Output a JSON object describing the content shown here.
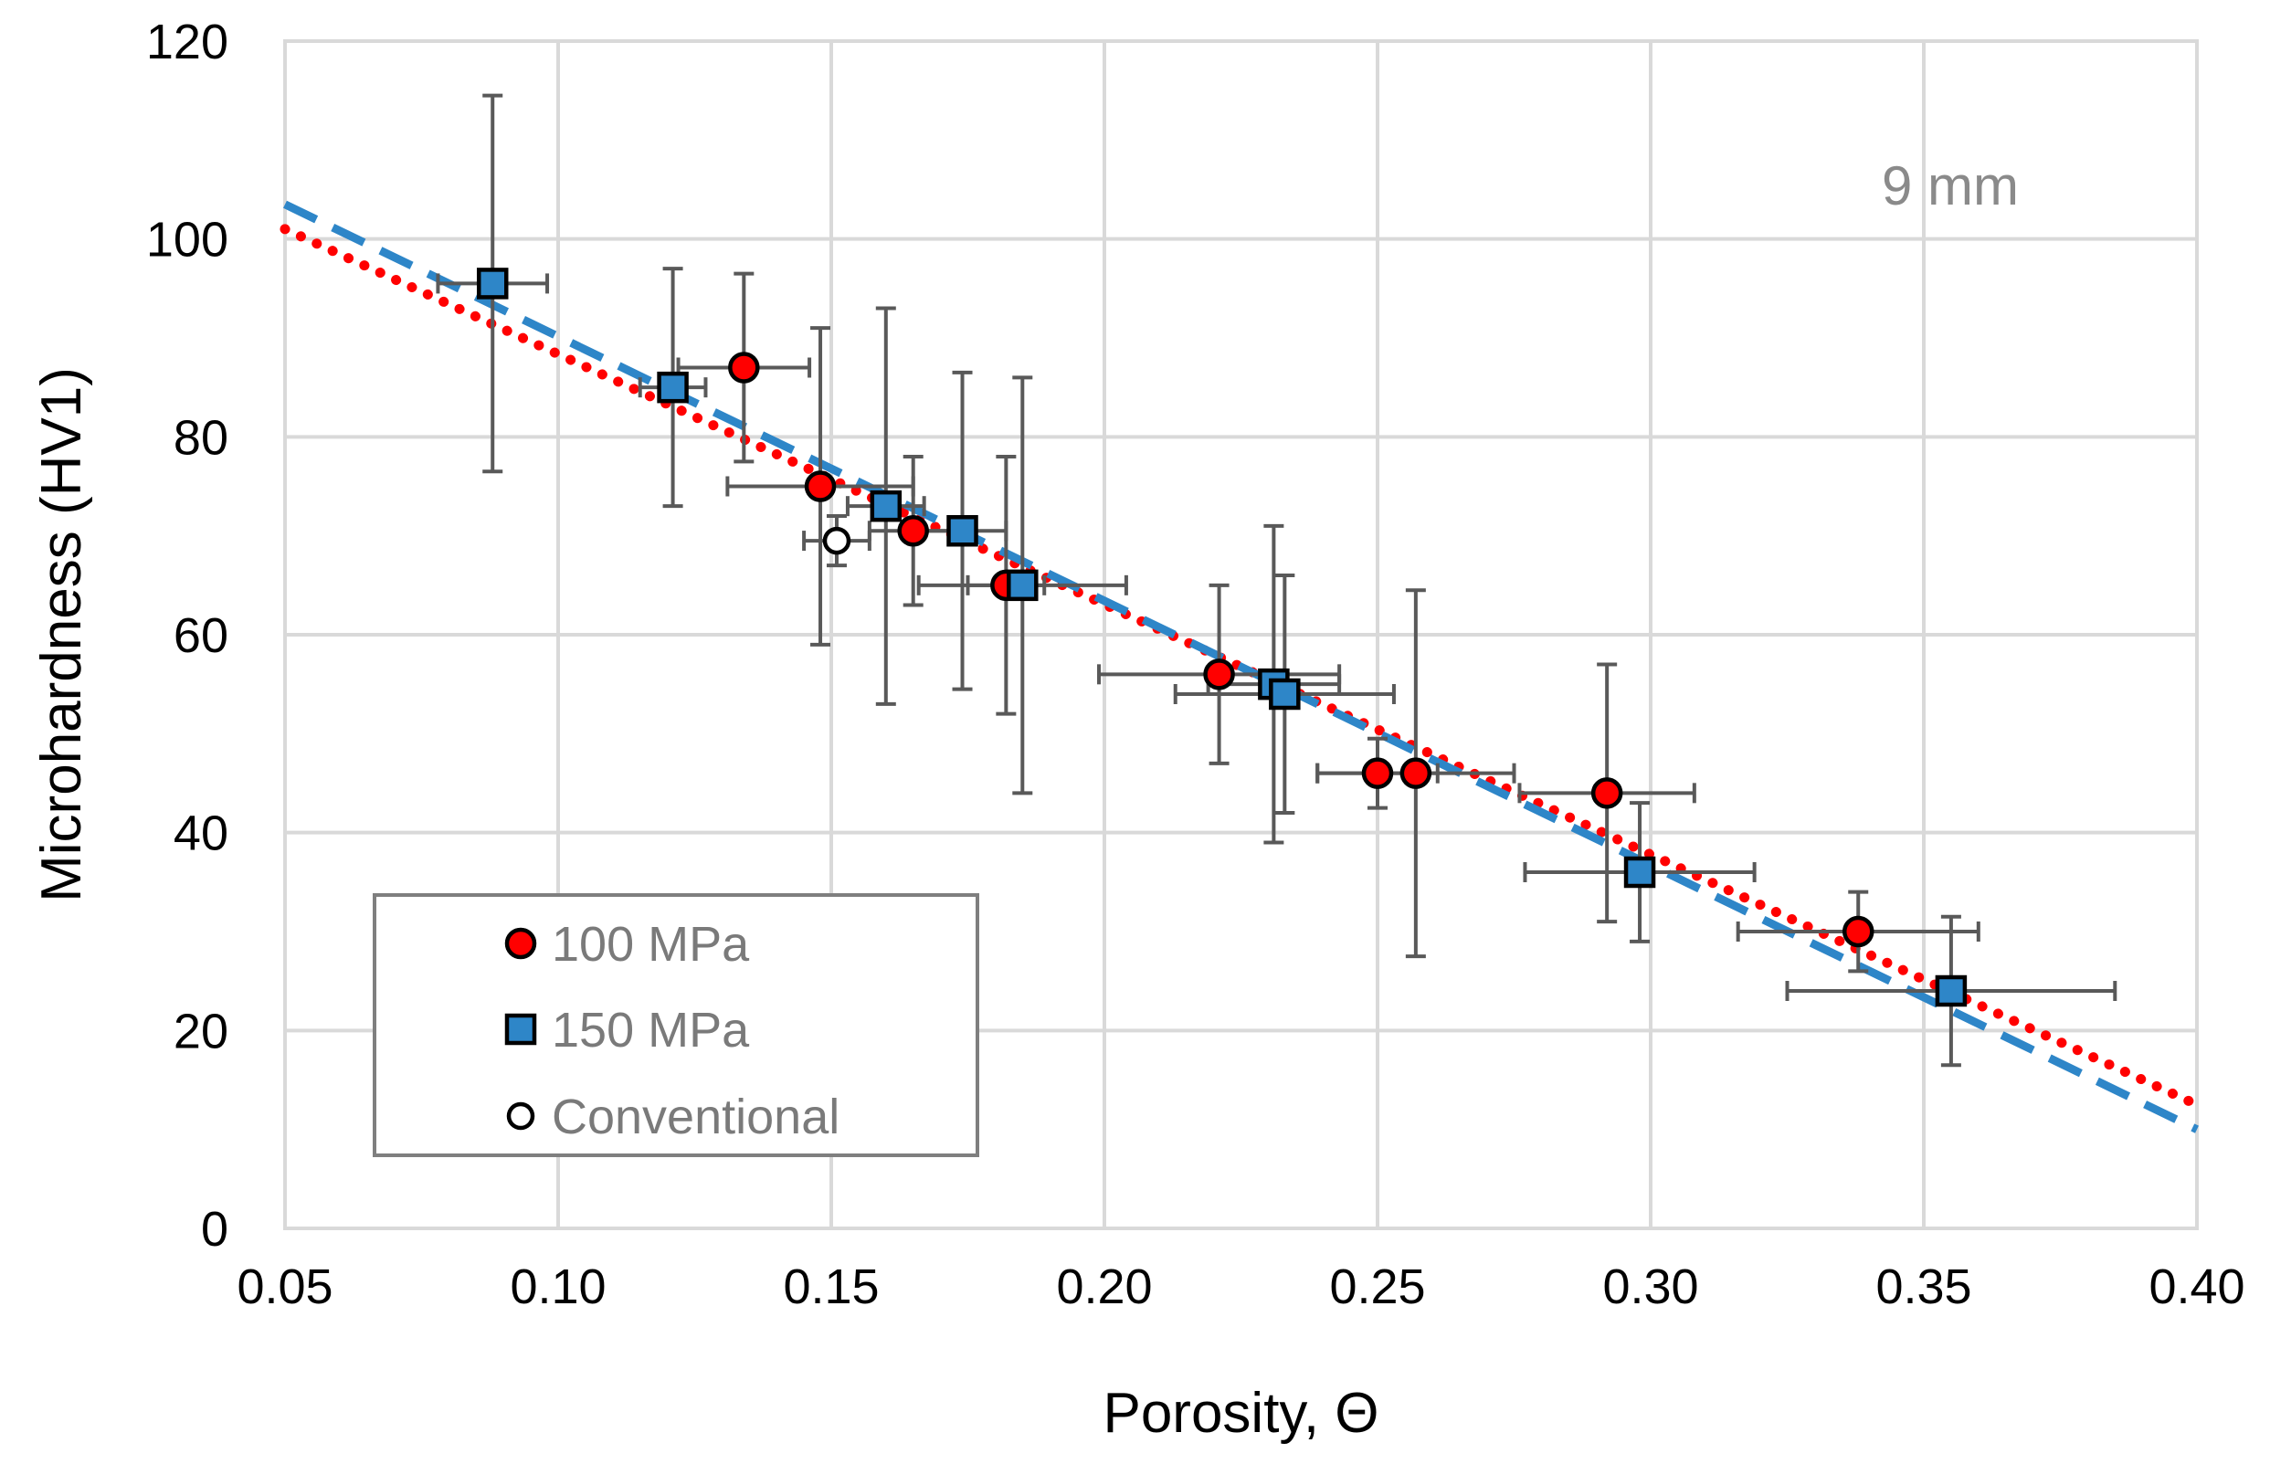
{
  "chart_data": {
    "type": "scatter",
    "title": "",
    "xlabel": "Porosity, Θ",
    "ylabel": "Microhardness (HV1)",
    "annotation": "9 mm",
    "xlim": [
      0.05,
      0.4
    ],
    "ylim": [
      0,
      120
    ],
    "x_ticks": [
      0.05,
      0.1,
      0.15,
      0.2,
      0.25,
      0.3,
      0.35,
      0.4
    ],
    "x_tick_labels": [
      "0.05",
      "0.10",
      "0.15",
      "0.20",
      "0.25",
      "0.30",
      "0.35",
      "0.40"
    ],
    "y_ticks": [
      0,
      20,
      40,
      60,
      80,
      100,
      120
    ],
    "y_tick_labels": [
      "0",
      "20",
      "40",
      "60",
      "80",
      "100",
      "120"
    ],
    "grid": true,
    "legend_position": "bottom-left",
    "colors": {
      "series_100": "#ff0000",
      "series_150": "#2e86c8",
      "series_conv": "#ffffff",
      "marker_edge": "#000000",
      "error_bar": "#595959",
      "grid": "#d9d9d9",
      "trend_100": "#ff0000",
      "trend_150": "#2e86c8"
    },
    "series": [
      {
        "name": "100 MPa",
        "marker": "circle",
        "points": [
          {
            "x": 0.134,
            "y": 87.0,
            "xerr": 0.012,
            "yerr": 9.5
          },
          {
            "x": 0.148,
            "y": 75.0,
            "xerr": 0.017,
            "yerr": 16.0
          },
          {
            "x": 0.165,
            "y": 70.5,
            "xerr": 0.008,
            "yerr": 7.5
          },
          {
            "x": 0.182,
            "y": 65.0,
            "xerr": 0.007,
            "yerr": 13.0
          },
          {
            "x": 0.221,
            "y": 56.0,
            "xerr": 0.022,
            "yerr": 9.0
          },
          {
            "x": 0.25,
            "y": 46.0,
            "xerr": 0.011,
            "yerr": 3.5
          },
          {
            "x": 0.257,
            "y": 46.0,
            "xerr": 0.018,
            "yerr": 18.5
          },
          {
            "x": 0.292,
            "y": 44.0,
            "xerr": 0.016,
            "yerr": 13.0
          },
          {
            "x": 0.338,
            "y": 30.0,
            "xerr": 0.022,
            "yerr": 4.0
          }
        ]
      },
      {
        "name": "150 MPa",
        "marker": "square",
        "points": [
          {
            "x": 0.088,
            "y": 95.5,
            "xerr": 0.01,
            "yerr": 19.0
          },
          {
            "x": 0.121,
            "y": 85.0,
            "xerr": 0.006,
            "yerr": 12.0
          },
          {
            "x": 0.16,
            "y": 73.0,
            "xerr": 0.007,
            "yerr": 20.0
          },
          {
            "x": 0.174,
            "y": 70.5,
            "xerr": 0.008,
            "yerr": 16.0
          },
          {
            "x": 0.185,
            "y": 65.0,
            "xerr": 0.019,
            "yerr": 21.0
          },
          {
            "x": 0.231,
            "y": 55.0,
            "xerr": 0.012,
            "yerr": 16.0
          },
          {
            "x": 0.233,
            "y": 54.0,
            "xerr": 0.02,
            "yerr": 12.0
          },
          {
            "x": 0.298,
            "y": 36.0,
            "xerr": 0.021,
            "yerr": 7.0
          },
          {
            "x": 0.355,
            "y": 24.0,
            "xerr": 0.03,
            "yerr": 7.5
          }
        ]
      },
      {
        "name": "Conventional",
        "marker": "open-circle",
        "points": [
          {
            "x": 0.151,
            "y": 69.5,
            "xerr": 0.006,
            "yerr": 2.5
          }
        ]
      }
    ],
    "trendlines": [
      {
        "series": "100 MPa",
        "style": "dotted",
        "x": [
          0.05,
          0.4
        ],
        "y": [
          101.0,
          12.5
        ]
      },
      {
        "series": "150 MPa",
        "style": "dashed",
        "x": [
          0.05,
          0.4
        ],
        "y": [
          103.5,
          10.0
        ]
      }
    ]
  }
}
